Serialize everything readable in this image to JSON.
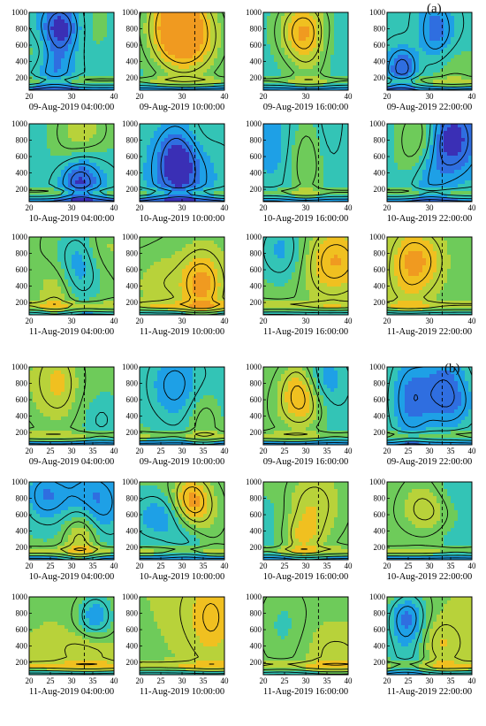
{
  "figure": {
    "panel_labels": [
      "(a)",
      "(b)"
    ]
  },
  "chart_data": {
    "type": "heatmap",
    "x_ticks_a": [
      "20",
      "30",
      "40"
    ],
    "x_ticks_b": [
      "20",
      "25",
      "30",
      "35",
      "40"
    ],
    "y_ticks": [
      "200",
      "400",
      "600",
      "800",
      "1000"
    ],
    "xlim": [
      20,
      40
    ],
    "ylim": [
      50,
      1000
    ],
    "dashed_line_x": 33,
    "colormap": [
      "#3a2fb5",
      "#2f6ee0",
      "#1ea0e6",
      "#33c4b6",
      "#6ecb5a",
      "#b8d23a",
      "#f0c020",
      "#f09a20"
    ],
    "contour_labels_note": "",
    "groups": [
      {
        "label": "(a)",
        "rows": [
          [
            {
              "title": "09-Aug-2019 04:00:00"
            },
            {
              "title": "09-Aug-2019 10:00:00"
            },
            {
              "title": "09-Aug-2019 16:00:00"
            },
            {
              "title": "09-Aug-2019 22:00:00"
            }
          ],
          [
            {
              "title": "10-Aug-2019 04:00:00"
            },
            {
              "title": "10-Aug-2019 10:00:00"
            },
            {
              "title": "10-Aug-2019 16:00:00"
            },
            {
              "title": "10-Aug-2019 22:00:00"
            }
          ],
          [
            {
              "title": "11-Aug-2019 04:00:00"
            },
            {
              "title": "11-Aug-2019 10:00:00"
            },
            {
              "title": "11-Aug-2019 16:00:00"
            },
            {
              "title": "11-Aug-2019 22:00:00"
            }
          ]
        ]
      },
      {
        "label": "(b)",
        "rows": [
          [
            {
              "title": "09-Aug-2019 04:00:00"
            },
            {
              "title": "09-Aug-2019 10:00:00"
            },
            {
              "title": "09-Aug-2019 16:00:00"
            },
            {
              "title": "09-Aug-2019 22:00:00"
            }
          ],
          [
            {
              "title": "10-Aug-2019 04:00:00"
            },
            {
              "title": "10-Aug-2019 10:00:00"
            },
            {
              "title": "10-Aug-2019 16:00:00"
            },
            {
              "title": "10-Aug-2019 22:00:00"
            }
          ],
          [
            {
              "title": "11-Aug-2019 04:00:00"
            },
            {
              "title": "11-Aug-2019 10:00:00"
            },
            {
              "title": "11-Aug-2019 16:00:00"
            },
            {
              "title": "11-Aug-2019 22:00:00"
            }
          ]
        ]
      }
    ]
  }
}
